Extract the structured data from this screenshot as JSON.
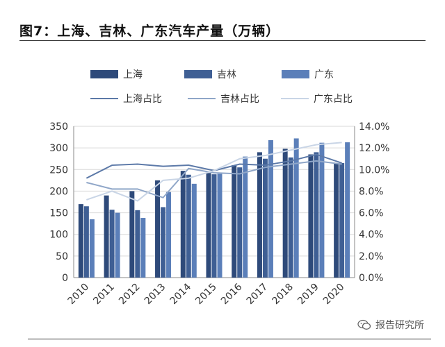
{
  "title": "图7：上海、吉林、广东汽车产量（万辆）",
  "watermark": "报告研究所",
  "watermark_icon": "wechat-icon",
  "colors": {
    "shanghai_bar": "#2E4A7A",
    "jilin_bar": "#3F5F94",
    "guangdong_bar": "#5B7FB9",
    "shanghai_line": "#5C79A8",
    "jilin_line": "#8FA6C8",
    "guangdong_line": "#C9D5E6",
    "axis": "#8A8A8A",
    "grid": "#D9D9D9"
  },
  "chart_data": {
    "type": "bar",
    "categories": [
      "2010",
      "2011",
      "2012",
      "2013",
      "2014",
      "2015",
      "2016",
      "2017",
      "2018",
      "2019",
      "2020"
    ],
    "series": [
      {
        "name": "上海",
        "type": "bar",
        "axis": "left",
        "values": [
          170,
          190,
          200,
          225,
          247,
          242,
          260,
          290,
          298,
          285,
          265
        ]
      },
      {
        "name": "吉林",
        "type": "bar",
        "axis": "left",
        "values": [
          165,
          157,
          156,
          163,
          238,
          239,
          255,
          275,
          278,
          290,
          265
        ]
      },
      {
        "name": "广东",
        "type": "bar",
        "axis": "left",
        "values": [
          135,
          150,
          138,
          198,
          217,
          240,
          280,
          318,
          322,
          312,
          313
        ]
      },
      {
        "name": "上海占比",
        "type": "line",
        "axis": "right",
        "values": [
          9.2,
          10.4,
          10.5,
          10.3,
          10.4,
          9.9,
          10.5,
          10.4,
          10.8,
          11.4,
          10.6
        ]
      },
      {
        "name": "吉林占比",
        "type": "line",
        "axis": "right",
        "values": [
          8.8,
          8.2,
          8.2,
          7.4,
          10.1,
          9.7,
          9.6,
          10.2,
          10.5,
          10.8,
          10.5
        ]
      },
      {
        "name": "广东占比",
        "type": "line",
        "axis": "right",
        "values": [
          7.2,
          8.0,
          7.1,
          9.0,
          9.2,
          9.9,
          11.0,
          11.3,
          11.8,
          12.3,
          12.5
        ]
      }
    ],
    "left_axis": {
      "min": 0,
      "max": 350,
      "ticks": [
        "0",
        "50",
        "100",
        "150",
        "200",
        "250",
        "300",
        "350"
      ]
    },
    "right_axis": {
      "min": 0,
      "max": 14,
      "ticks": [
        "0.0%",
        "2.0%",
        "4.0%",
        "6.0%",
        "8.0%",
        "10.0%",
        "12.0%",
        "14.0%"
      ]
    },
    "grid": true,
    "legend_position": "top"
  }
}
